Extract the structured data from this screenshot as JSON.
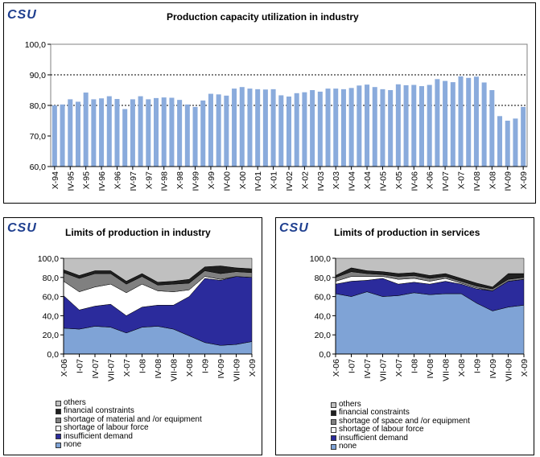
{
  "logo_text": "CSU",
  "colors": {
    "bar": "#8aabdc",
    "others": "#c0c0c0",
    "financial": "#202020",
    "material": "#808080",
    "labour": "#ffffff",
    "demand": "#2b2b9c",
    "none": "#7fa3d6"
  },
  "chart_data": [
    {
      "type": "bar",
      "title": "Production capacity utilization in industry",
      "ylim": [
        60,
        100
      ],
      "yticks": [
        "60,0",
        "70,0",
        "80,0",
        "90,0",
        "100,0"
      ],
      "ytick_values": [
        60,
        70,
        80,
        90,
        100
      ],
      "dotted_gridlines": [
        80,
        90
      ],
      "categories": [
        "X-94",
        "I-95",
        "IV-95",
        "VII-95",
        "X-95",
        "I-96",
        "IV-96",
        "VII-96",
        "X-96",
        "I-97",
        "IV-97",
        "VII-97",
        "X-97",
        "I-98",
        "IV-98",
        "VII-98",
        "X-98",
        "I-99",
        "IV-99",
        "VII-99",
        "X-99",
        "I-00",
        "IV-00",
        "VII-00",
        "X-00",
        "I-01",
        "IV-01",
        "VII-01",
        "X-01",
        "I-02",
        "IV-02",
        "VII-02",
        "X-02",
        "I-03",
        "IV-03",
        "VII-03",
        "X-03",
        "I-04",
        "IV-04",
        "VII-04",
        "X-04",
        "I-05",
        "IV-05",
        "VII-05",
        "X-05",
        "I-06",
        "IV-06",
        "VII-06",
        "X-06",
        "I-07",
        "IV-07",
        "VII-07",
        "X-07",
        "I-08",
        "IV-08",
        "VII-08",
        "X-08",
        "I-09",
        "IV-09",
        "VII-09",
        "X-09"
      ],
      "tick_labels": [
        "X-94",
        "IV-95",
        "X-95",
        "IV-96",
        "X-96",
        "IV-97",
        "X-97",
        "IV-98",
        "X-98",
        "IV-99",
        "X-99",
        "IV-00",
        "X-00",
        "IV-01",
        "X-01",
        "IV-02",
        "X-02",
        "IV-03",
        "X-03",
        "IV-04",
        "X-04",
        "IV-05",
        "X-05",
        "IV-06",
        "X-06",
        "IV-07",
        "X-07",
        "IV-08",
        "X-08",
        "IV-09",
        "X-09"
      ],
      "values": [
        80.0,
        80.3,
        82.0,
        81.2,
        84.2,
        82.0,
        82.3,
        83.0,
        82.1,
        78.8,
        82.0,
        83.0,
        82.0,
        82.4,
        82.6,
        82.5,
        81.8,
        80.3,
        79.5,
        81.6,
        83.8,
        83.6,
        83.2,
        85.5,
        86.0,
        85.5,
        85.3,
        85.2,
        85.3,
        83.3,
        82.9,
        84.0,
        84.3,
        85.0,
        84.5,
        85.5,
        85.5,
        85.3,
        85.7,
        86.5,
        86.8,
        86.0,
        85.3,
        85.0,
        86.9,
        86.6,
        86.7,
        86.3,
        86.7,
        88.6,
        88.0,
        87.6,
        89.5,
        89.0,
        89.4,
        87.5,
        85.0,
        76.5,
        75.0,
        75.7,
        79.5
      ]
    },
    {
      "type": "area",
      "title": "Limits of production in industry",
      "ylim": [
        0,
        100
      ],
      "yticks": [
        "0,0",
        "20,0",
        "40,0",
        "60,0",
        "80,0",
        "100,0"
      ],
      "ytick_values": [
        0,
        20,
        40,
        60,
        80,
        100
      ],
      "categories": [
        "X-06",
        "I-07",
        "IV-07",
        "VII-07",
        "X-07",
        "I-08",
        "IV-08",
        "VII-08",
        "X-08",
        "I-09",
        "IV-09",
        "VII-09",
        "X-09"
      ],
      "series": [
        {
          "name": "none",
          "values": [
            27,
            26,
            29,
            28,
            22,
            28,
            29,
            26,
            19,
            12,
            9,
            10,
            13
          ]
        },
        {
          "name": "insufficient demand",
          "values": [
            34,
            20,
            21,
            24,
            18,
            21,
            22,
            25,
            41,
            67,
            68,
            71,
            67
          ]
        },
        {
          "name": "shortage of labour force",
          "values": [
            15,
            19,
            20,
            21,
            24,
            24,
            15,
            14,
            7,
            2,
            1,
            0,
            0
          ]
        },
        {
          "name": "shortage of material and /or equipment",
          "values": [
            9,
            14,
            14,
            11,
            9,
            8,
            6,
            8,
            7,
            6,
            6,
            5,
            5
          ]
        },
        {
          "name": "financial constraints",
          "values": [
            3,
            3,
            3,
            3,
            3,
            3,
            3,
            3,
            4,
            4,
            8,
            4,
            4
          ]
        },
        {
          "name": "others",
          "values": [
            12,
            18,
            13,
            13,
            24,
            16,
            25,
            24,
            22,
            9,
            8,
            10,
            11
          ]
        }
      ]
    },
    {
      "type": "area",
      "title": "Limits of production in services",
      "ylim": [
        0,
        100
      ],
      "yticks": [
        "0,0",
        "20,0",
        "40,0",
        "60,0",
        "80,0",
        "100,0"
      ],
      "ytick_values": [
        0,
        20,
        40,
        60,
        80,
        100
      ],
      "categories": [
        "X-06",
        "I-07",
        "IV-07",
        "VII-07",
        "X-07",
        "I-08",
        "IV-08",
        "VII-08",
        "X-08",
        "I-09",
        "IV-09",
        "VII-09",
        "X-09"
      ],
      "series": [
        {
          "name": "none",
          "values": [
            63,
            60,
            65,
            60,
            61,
            64,
            62,
            63,
            63,
            53,
            45,
            49,
            51
          ]
        },
        {
          "name": "insufficient demand",
          "values": [
            10,
            16,
            12,
            19,
            12,
            11,
            11,
            13,
            10,
            15,
            21,
            27,
            27
          ]
        },
        {
          "name": "shortage of labour force",
          "values": [
            3,
            5,
            4,
            2,
            5,
            4,
            3,
            3,
            1,
            1,
            0,
            0,
            0
          ]
        },
        {
          "name": "shortage of space and /or equipment",
          "values": [
            4,
            5,
            3,
            2,
            3,
            3,
            3,
            2,
            2,
            2,
            2,
            2,
            2
          ]
        },
        {
          "name": "financial constraints",
          "values": [
            2,
            4,
            3,
            3,
            3,
            3,
            3,
            3,
            3,
            3,
            2,
            6,
            4
          ]
        },
        {
          "name": "others",
          "values": [
            18,
            10,
            13,
            14,
            16,
            15,
            18,
            16,
            21,
            26,
            30,
            16,
            16
          ]
        }
      ]
    }
  ]
}
